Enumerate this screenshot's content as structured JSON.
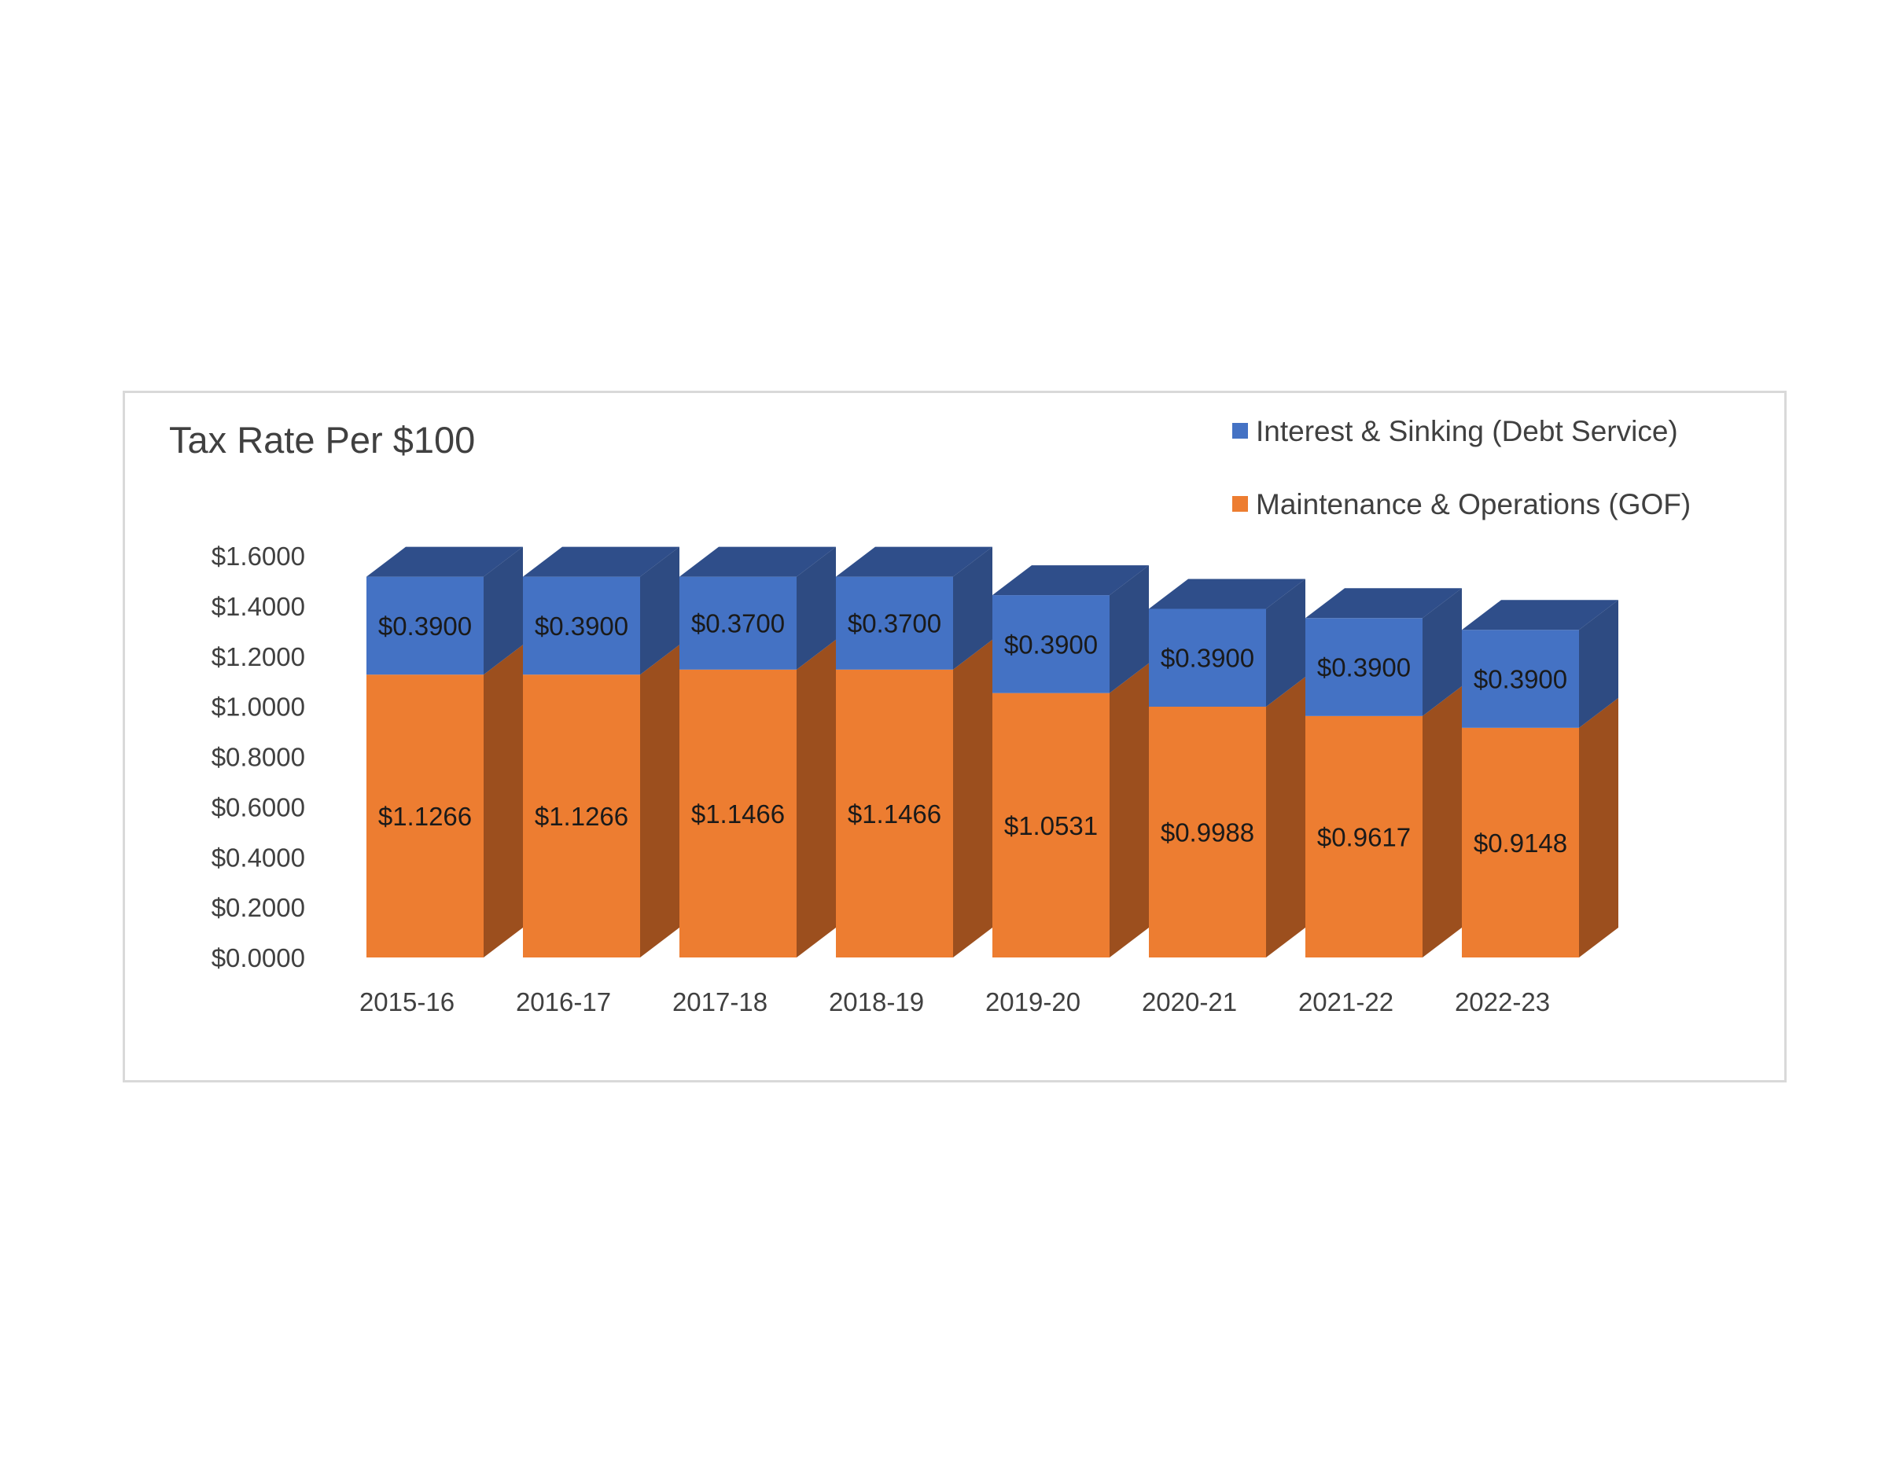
{
  "chart_data": {
    "type": "bar",
    "stacked": true,
    "three_d": true,
    "title": "Tax Rate Per $100",
    "categories": [
      "2015-16",
      "2016-17",
      "2017-18",
      "2018-19",
      "2019-20",
      "2020-21",
      "2021-22",
      "2022-23"
    ],
    "series": [
      {
        "name": "Maintenance & Operations (GOF)",
        "color": "#ED7D31",
        "side_color": "#9C4F1E",
        "top_color": "#C0651F",
        "values": [
          1.1266,
          1.1266,
          1.1466,
          1.1466,
          1.0531,
          0.9988,
          0.9617,
          0.9148
        ],
        "labels": [
          "$1.1266",
          "$1.1266",
          "$1.1466",
          "$1.1466",
          "$1.0531",
          "$0.9988",
          "$0.9617",
          "$0.9148"
        ]
      },
      {
        "name": "Interest & Sinking (Debt Service)",
        "color": "#4472C4",
        "side_color": "#2E4B82",
        "top_color": "#2F4E8A",
        "values": [
          0.39,
          0.39,
          0.37,
          0.37,
          0.39,
          0.39,
          0.39,
          0.39
        ],
        "labels": [
          "$0.3900",
          "$0.3900",
          "$0.3700",
          "$0.3700",
          "$0.3900",
          "$0.3900",
          "$0.3900",
          "$0.3900"
        ]
      }
    ],
    "y_ticks": [
      "$0.0000",
      "$0.2000",
      "$0.4000",
      "$0.6000",
      "$0.8000",
      "$1.0000",
      "$1.2000",
      "$1.4000",
      "$1.6000"
    ],
    "ylim": [
      0,
      1.6
    ],
    "grid": false,
    "legend_position": "top-right"
  }
}
